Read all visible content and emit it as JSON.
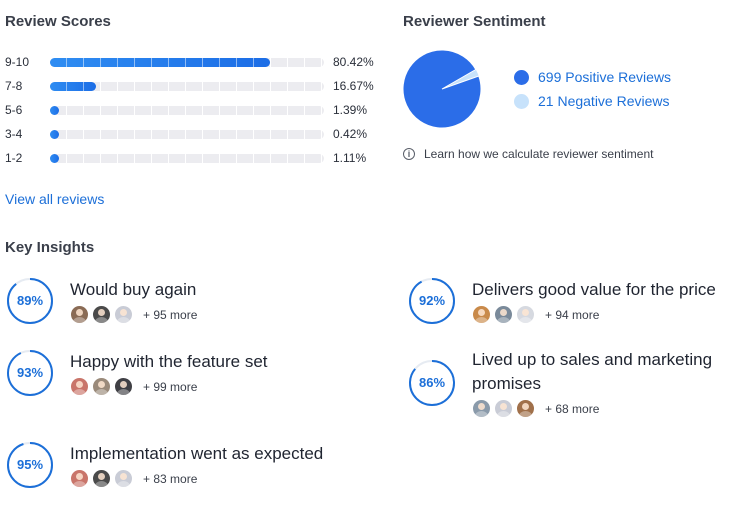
{
  "review_scores": {
    "title": "Review Scores",
    "rows": [
      {
        "label": "9-10",
        "percent_text": "80.42%",
        "value": 80.42
      },
      {
        "label": "7-8",
        "percent_text": "16.67%",
        "value": 16.67
      },
      {
        "label": "5-6",
        "percent_text": "1.39%",
        "value": 1.39
      },
      {
        "label": "3-4",
        "percent_text": "0.42%",
        "value": 0.42
      },
      {
        "label": "1-2",
        "percent_text": "1.11%",
        "value": 1.11
      }
    ],
    "view_all_link": "View all reviews"
  },
  "sentiment": {
    "title": "Reviewer Sentiment",
    "positive_label": "699 Positive Reviews",
    "negative_label": "21 Negative Reviews",
    "positive_count": 699,
    "negative_count": 21,
    "positive_color": "#2b6de8",
    "negative_color": "#c7e2fb",
    "info_text": "Learn how we calculate reviewer sentiment"
  },
  "insights": {
    "title": "Key Insights",
    "items": [
      {
        "percent_text": "89%",
        "value": 89,
        "title": "Would buy again",
        "more": "+ 95 more",
        "avatars": [
          "#8a6b55",
          "#4a4a4a",
          "#c9ccd6"
        ]
      },
      {
        "percent_text": "92%",
        "value": 92,
        "title": "Delivers good value for the price",
        "more": "+ 94 more",
        "avatars": [
          "#c98a4a",
          "#7a8a9a",
          "#d6d9e0"
        ]
      },
      {
        "percent_text": "93%",
        "value": 93,
        "title": "Happy with the feature set",
        "more": "+ 99 more",
        "avatars": [
          "#c9756a",
          "#9a8a7a",
          "#3f3f44"
        ]
      },
      {
        "percent_text": "86%",
        "value": 86,
        "title_line1": "Lived up to sales and marketing",
        "title_line2": "promises",
        "more": "+ 68 more",
        "avatars": [
          "#8a9aaa",
          "#c9ccd6",
          "#a0704a"
        ]
      },
      {
        "percent_text": "95%",
        "value": 95,
        "title": "Implementation went as expected",
        "more": "+ 83 more",
        "avatars": [
          "#c9756a",
          "#4a4a4a",
          "#c9ccd6"
        ]
      }
    ]
  },
  "accent_color": "#1c6fd8"
}
